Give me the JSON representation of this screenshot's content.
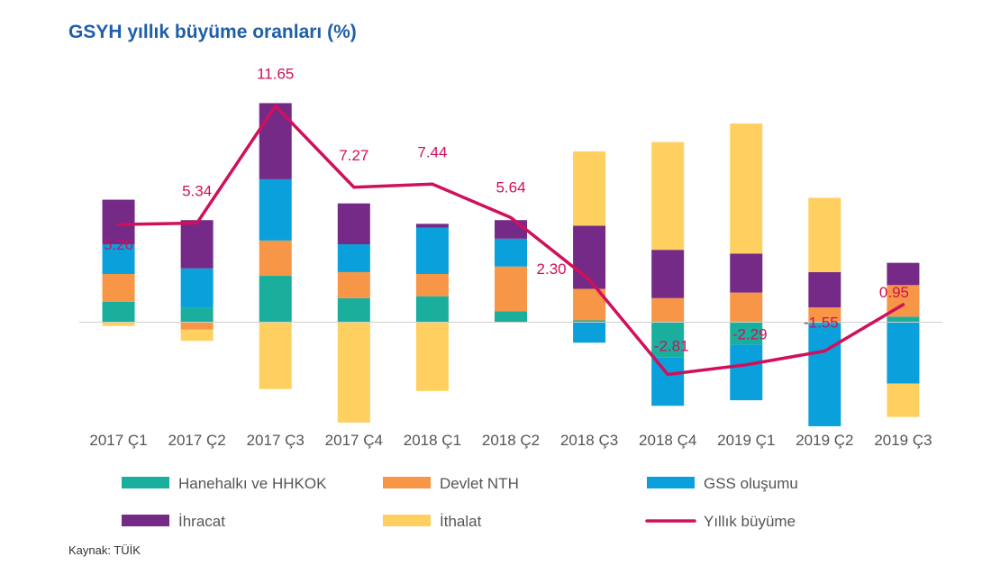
{
  "title": "GSYH yıllık büyüme oranları (%)",
  "source": "Kaynak: TÜİK",
  "chart_data": {
    "type": "bar",
    "stacked": true,
    "categories": [
      "2017 Ç1",
      "2017 Ç2",
      "2017 Ç3",
      "2017 Ç4",
      "2018 Ç1",
      "2018 Ç2",
      "2018 Ç3",
      "2018 Ç4",
      "2019 Ç1",
      "2019 Ç2",
      "2019 Ç3"
    ],
    "series": [
      {
        "name": "Hanehalkı ve HHKOK",
        "color": "#1aaf9c",
        "values": [
          1.1,
          0.8,
          2.5,
          1.3,
          1.4,
          0.6,
          0.1,
          -1.9,
          -1.2,
          -0.1,
          0.3
        ]
      },
      {
        "name": "Devlet NTH",
        "color": "#f79646",
        "values": [
          1.5,
          -0.4,
          1.9,
          1.4,
          1.2,
          2.4,
          1.7,
          1.3,
          1.6,
          0.8,
          1.7
        ]
      },
      {
        "name": "GSS oluşumu",
        "color": "#09a0dc",
        "values": [
          1.6,
          2.1,
          3.3,
          1.5,
          2.5,
          1.5,
          -1.1,
          -2.6,
          -3.0,
          -5.5,
          -3.3
        ]
      },
      {
        "name": "İhracat",
        "color": "#742a86",
        "values": [
          2.4,
          2.6,
          4.1,
          2.2,
          0.2,
          1.0,
          3.4,
          2.6,
          2.1,
          1.9,
          1.2
        ]
      },
      {
        "name": "İthalat",
        "color": "#ffd05f",
        "values": [
          -0.2,
          -0.6,
          -3.6,
          -5.4,
          -3.7,
          0,
          4.0,
          5.8,
          7.0,
          4.0,
          -1.8
        ]
      }
    ],
    "line": {
      "name": "Yıllık büyüme",
      "color": "#d0105b",
      "values": [
        5.26,
        5.34,
        11.65,
        7.27,
        7.44,
        5.64,
        2.3,
        -2.81,
        -2.29,
        -1.55,
        0.95
      ],
      "labels": [
        "5.26",
        "5.34",
        "11.65",
        "7.27",
        "7.44",
        "5.64",
        "2.30",
        "-2.81",
        "-2.29",
        "-1.55",
        "0.95"
      ]
    },
    "ylim": [
      -5.7,
      12.5
    ],
    "grid": false,
    "legend_position": "bottom",
    "xlabel": "",
    "ylabel": ""
  }
}
